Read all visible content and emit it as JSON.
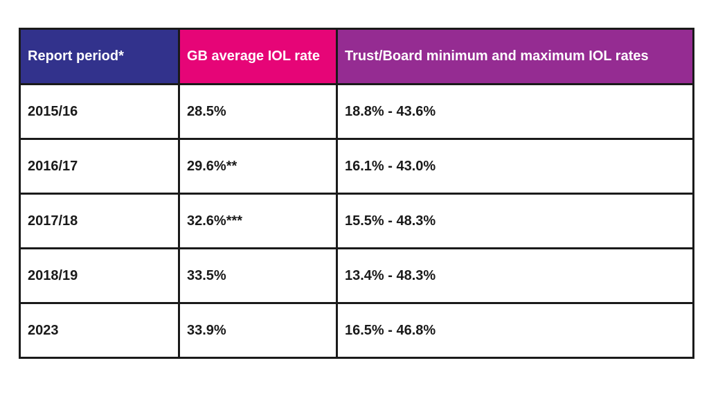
{
  "table": {
    "columns": [
      {
        "label": "Report period*",
        "bg": "#32328C"
      },
      {
        "label": "GB average IOL rate",
        "bg": "#E60577"
      },
      {
        "label": "Trust/Board minimum and maximum IOL rates",
        "bg": "#952C92"
      }
    ],
    "rows": [
      {
        "period": "2015/16",
        "avg_rate": "28.5%",
        "min_max": "18.8% - 43.6%"
      },
      {
        "period": "2016/17",
        "avg_rate": "29.6%**",
        "min_max": "16.1% - 43.0%"
      },
      {
        "period": "2017/18",
        "avg_rate": "32.6%***",
        "min_max": "15.5% - 48.3%"
      },
      {
        "period": "2018/19",
        "avg_rate": "33.5%",
        "min_max": "13.4% - 48.3%"
      },
      {
        "period": "2023",
        "avg_rate": "33.9%",
        "min_max": "16.5% - 46.8%"
      }
    ]
  },
  "colors": {
    "header_report_period_bg": "#32328C",
    "header_avg_rate_bg": "#E60577",
    "header_min_max_bg": "#952C92",
    "border": "#1a1a1a",
    "body_text": "#1a1a1a",
    "header_text": "#ffffff",
    "page_bg": "#ffffff"
  }
}
